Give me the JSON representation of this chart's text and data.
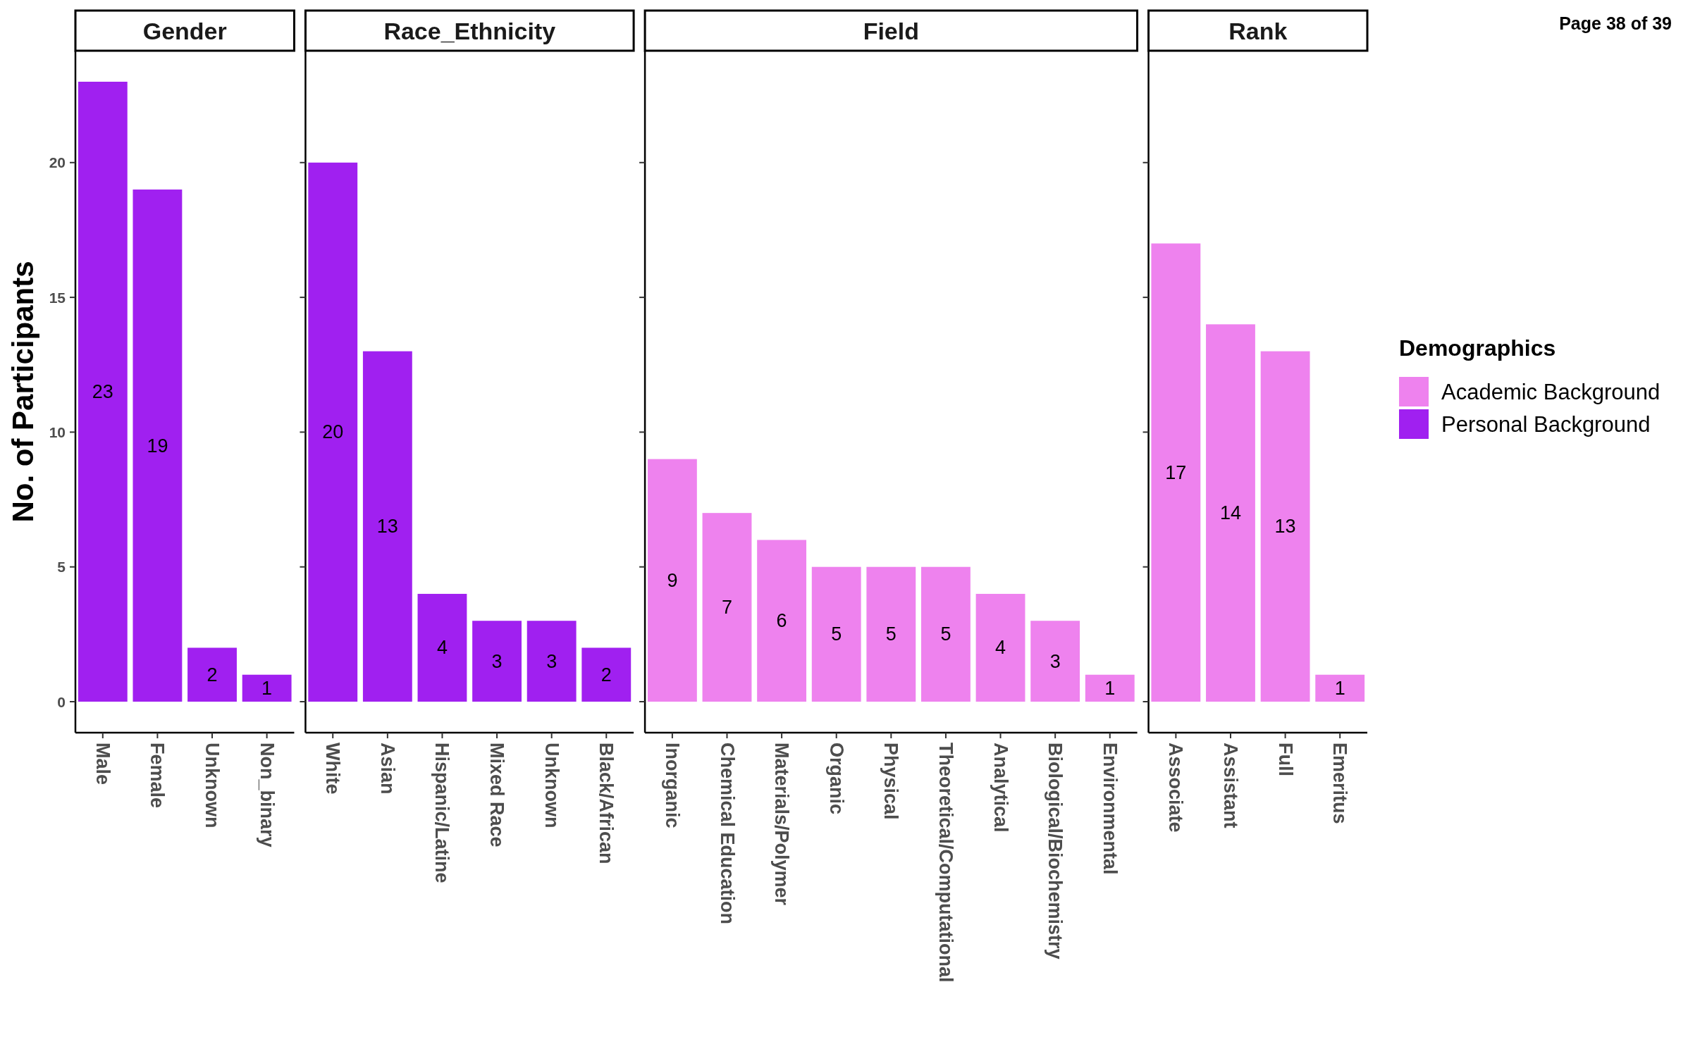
{
  "chart_data": [
    {
      "type": "bar",
      "title": "Gender",
      "ylabel": "No. of Participants",
      "categories": [
        "Male",
        "Female",
        "Unknown",
        "Non_binary"
      ],
      "series": [
        {
          "name": "Personal Background",
          "color": "#a020f0",
          "values": [
            23,
            19,
            2,
            1
          ]
        }
      ],
      "ylim": [
        -1.15,
        24.15
      ],
      "yticks": [
        0,
        5,
        10,
        15,
        20
      ],
      "data_labels": true
    },
    {
      "type": "bar",
      "title": "Race_Ethnicity",
      "categories": [
        "White",
        "Asian",
        "Hispanic/Latine",
        "Mixed Race",
        "Unknown",
        "Black/African"
      ],
      "series": [
        {
          "name": "Personal Background",
          "color": "#a020f0",
          "values": [
            20,
            13,
            4,
            3,
            3,
            2
          ]
        }
      ],
      "ylim": [
        -1.15,
        24.15
      ],
      "yticks": [
        0,
        5,
        10,
        15,
        20
      ],
      "tick_labels": "x",
      "data_labels": true
    },
    {
      "type": "bar",
      "title": "Field",
      "categories": [
        "Inorganic",
        "Chemical Education",
        "Materials/Polymer",
        "Organic",
        "Physical",
        "Theoretical/Computational",
        "Analytical",
        "Biological/Biochemistry",
        "Environmental"
      ],
      "series": [
        {
          "name": "Academic Background",
          "color": "#ee82ee",
          "values": [
            9,
            7,
            6,
            5,
            5,
            5,
            4,
            3,
            1
          ]
        }
      ],
      "ylim": [
        -1.15,
        24.15
      ],
      "yticks": [
        0,
        5,
        10,
        15,
        20
      ],
      "tick_labels": "x",
      "data_labels": true
    },
    {
      "type": "bar",
      "title": "Rank",
      "categories": [
        "Associate",
        "Assistant",
        "Full",
        "Emeritus"
      ],
      "series": [
        {
          "name": "Academic Background",
          "color": "#ee82ee",
          "values": [
            17,
            14,
            13,
            1
          ]
        }
      ],
      "ylim": [
        -1.15,
        24.15
      ],
      "yticks": [
        0,
        5,
        10,
        15,
        20
      ],
      "tick_labels": "x",
      "data_labels": true,
      "legend": "right",
      "legend_title": "Demographics",
      "annotations": [
        "Page 38 of 39"
      ]
    }
  ]
}
